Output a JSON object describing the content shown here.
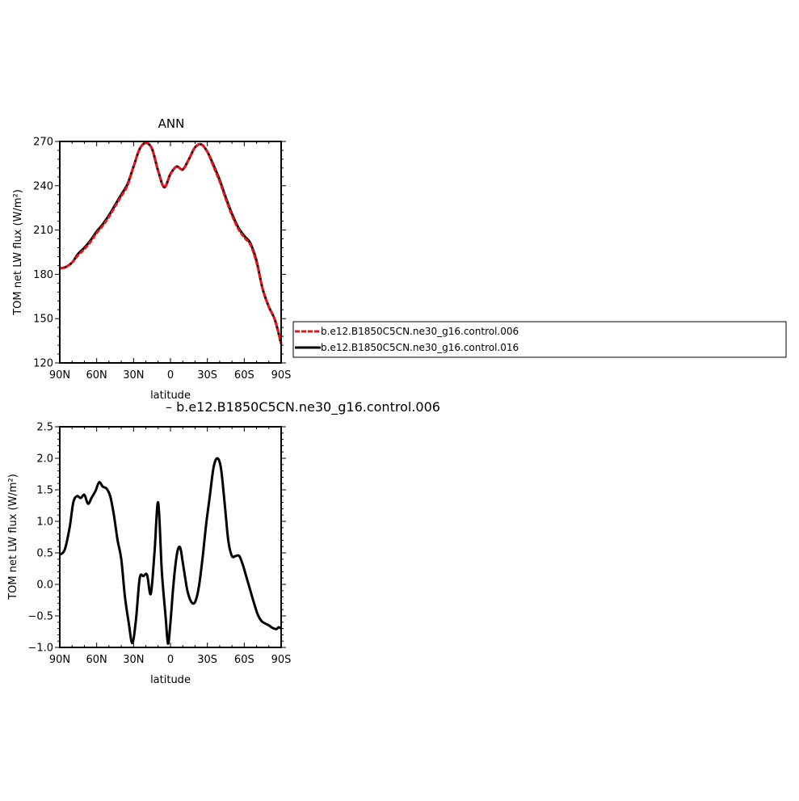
{
  "figure": {
    "title": "ANN",
    "diff_title": "– b.e12.B1850C5CN.ne30_g16.control.006"
  },
  "colors": {
    "series_006": "#e8141b",
    "series_016": "#000000",
    "diff_line": "#000000",
    "frame": "#000000"
  },
  "chart_data": [
    {
      "type": "line",
      "title": "ANN",
      "xlabel": "latitude",
      "ylabel": "TOM net LW flux (W/m²)",
      "xlim": [
        90,
        -90
      ],
      "ylim": [
        120,
        270
      ],
      "x_ticks": [
        {
          "value": 90,
          "label": "90N"
        },
        {
          "value": 60,
          "label": "60N"
        },
        {
          "value": 30,
          "label": "30N"
        },
        {
          "value": 0,
          "label": "0"
        },
        {
          "value": -30,
          "label": "30S"
        },
        {
          "value": -60,
          "label": "60S"
        },
        {
          "value": -90,
          "label": "90S"
        }
      ],
      "y_ticks": [
        {
          "value": 120,
          "label": "120"
        },
        {
          "value": 150,
          "label": "150"
        },
        {
          "value": 180,
          "label": "180"
        },
        {
          "value": 210,
          "label": "210"
        },
        {
          "value": 240,
          "label": "240"
        },
        {
          "value": 270,
          "label": "270"
        }
      ],
      "legend": {
        "placement": "right"
      },
      "x": [
        90,
        85,
        80,
        75,
        70,
        65,
        60,
        55,
        50,
        45,
        40,
        35,
        30,
        25,
        20,
        15,
        10,
        5,
        0,
        -5,
        -10,
        -15,
        -20,
        -25,
        -30,
        -35,
        -40,
        -45,
        -50,
        -55,
        -60,
        -65,
        -70,
        -75,
        -80,
        -85,
        -90
      ],
      "series": [
        {
          "name": "b.e12.B1850C5CN.ne30_g16.control.006",
          "style": "dashed",
          "values": [
            184,
            185,
            188,
            193,
            197,
            202,
            208,
            213,
            219,
            226,
            233,
            240,
            253,
            265,
            269,
            265,
            250,
            239,
            248,
            253,
            251,
            258,
            266,
            268,
            263,
            253,
            243,
            231,
            220,
            211,
            205,
            200,
            188,
            170,
            158,
            149,
            133
          ]
        },
        {
          "name": "b.e12.B1850C5CN.ne30_g16.control.016",
          "style": "solid",
          "values": [
            184,
            185,
            188,
            194,
            198,
            203,
            209,
            214,
            220,
            227,
            234,
            241,
            253,
            265,
            269,
            265,
            250,
            239,
            248,
            253,
            251,
            258,
            266,
            268,
            263,
            254,
            244,
            232,
            221,
            212,
            206,
            201,
            189,
            170,
            158,
            149,
            133
          ]
        }
      ]
    },
    {
      "type": "line",
      "xlabel": "latitude",
      "ylabel": "TOM net LW flux (W/m²)",
      "xlim": [
        90,
        -90
      ],
      "ylim": [
        -1.0,
        2.5
      ],
      "x_ticks": [
        {
          "value": 90,
          "label": "90N"
        },
        {
          "value": 60,
          "label": "60N"
        },
        {
          "value": 30,
          "label": "30N"
        },
        {
          "value": 0,
          "label": "0"
        },
        {
          "value": -30,
          "label": "30S"
        },
        {
          "value": -60,
          "label": "60S"
        },
        {
          "value": -90,
          "label": "90S"
        }
      ],
      "y_ticks": [
        {
          "value": -1.0,
          "label": "−1.0"
        },
        {
          "value": -0.5,
          "label": "−0.5"
        },
        {
          "value": 0.0,
          "label": "0.0"
        },
        {
          "value": 0.5,
          "label": "0.5"
        },
        {
          "value": 1.0,
          "label": "1.0"
        },
        {
          "value": 1.5,
          "label": "1.5"
        },
        {
          "value": 2.0,
          "label": "2.0"
        },
        {
          "value": 2.5,
          "label": "2.5"
        }
      ],
      "x": [
        90,
        86,
        82,
        79,
        76,
        73,
        70,
        67,
        64,
        61,
        58,
        55,
        52,
        49,
        46,
        43,
        40,
        37,
        34,
        31,
        28,
        25,
        22,
        19,
        16,
        13,
        10,
        7,
        4,
        2,
        0,
        -2,
        -4,
        -6,
        -8,
        -10,
        -12,
        -14,
        -17,
        -20,
        -23,
        -26,
        -29,
        -32,
        -35,
        -38,
        -41,
        -44,
        -47,
        -50,
        -53,
        -56,
        -59,
        -62,
        -65,
        -68,
        -71,
        -74,
        -77,
        -80,
        -83,
        -86,
        -88,
        -90
      ],
      "series": [
        {
          "values": [
            0.47,
            0.55,
            0.9,
            1.3,
            1.4,
            1.37,
            1.42,
            1.28,
            1.38,
            1.48,
            1.62,
            1.55,
            1.52,
            1.4,
            1.1,
            0.7,
            0.4,
            -0.2,
            -0.6,
            -0.93,
            -0.55,
            0.1,
            0.13,
            0.15,
            -0.15,
            0.5,
            1.3,
            0.2,
            -0.5,
            -0.94,
            -0.6,
            -0.1,
            0.3,
            0.55,
            0.58,
            0.35,
            0.1,
            -0.12,
            -0.28,
            -0.28,
            -0.05,
            0.4,
            0.95,
            1.4,
            1.85,
            2.0,
            1.85,
            1.3,
            0.7,
            0.45,
            0.45,
            0.45,
            0.3,
            0.1,
            -0.1,
            -0.3,
            -0.48,
            -0.58,
            -0.62,
            -0.65,
            -0.69,
            -0.71,
            -0.68,
            -0.7
          ]
        }
      ]
    }
  ]
}
